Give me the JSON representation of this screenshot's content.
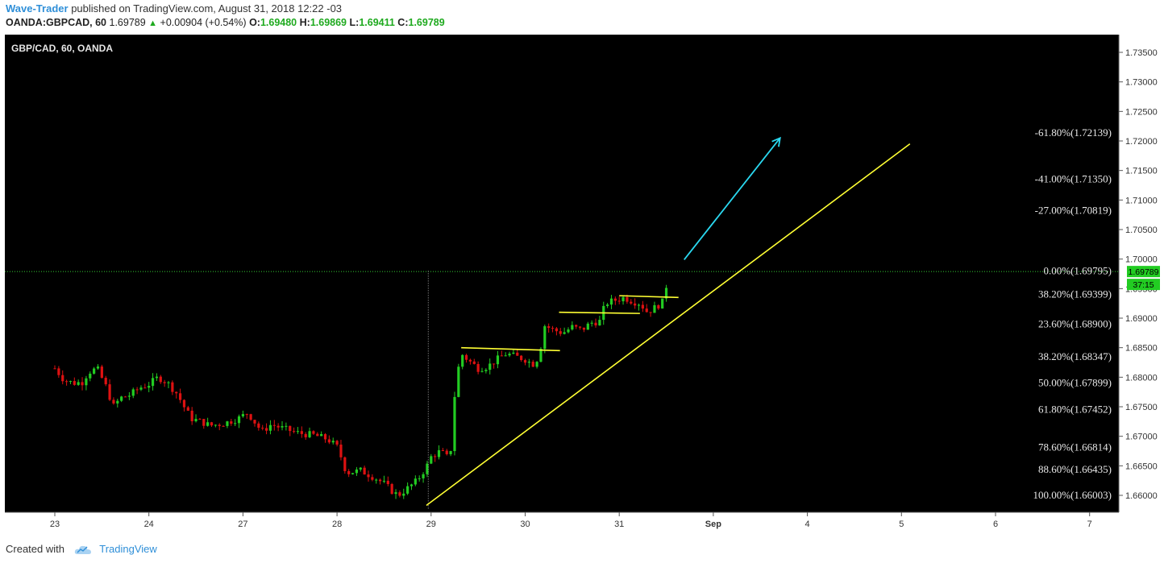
{
  "header": {
    "author": "Wave-Trader",
    "published_text": "published on TradingView.com, August 31, 2018 12:22 -03",
    "symbol": "OANDA:GBPCAD, 60",
    "last": "1.69789",
    "change": "+0.00904 (+0.54%)",
    "o_label": "O:",
    "o_value": "1.69480",
    "h_label": "H:",
    "h_value": "1.69869",
    "l_label": "L:",
    "l_value": "1.69411",
    "c_label": "C:",
    "c_value": "1.69789"
  },
  "footer": {
    "created_with": "Created with",
    "brand": "TradingView"
  },
  "colors": {
    "background": "#000000",
    "up": "#22cc22",
    "down": "#dd1111",
    "trendline": "#ffff33",
    "arrow": "#2ad8f0",
    "price_line": "#33cc33"
  },
  "chart_data": {
    "type": "candlestick",
    "title": "GBP/CAD, 60, OANDA",
    "ylim": [
      1.657,
      1.738
    ],
    "y_ticks": [
      "1.73500",
      "1.73000",
      "1.72500",
      "1.72000",
      "1.71500",
      "1.71000",
      "1.70500",
      "1.70000",
      "1.69500",
      "1.69000",
      "1.68500",
      "1.68000",
      "1.67500",
      "1.67000",
      "1.66500",
      "1.66000"
    ],
    "x_ticks": [
      {
        "label": "23",
        "day": 0
      },
      {
        "label": "24",
        "day": 1
      },
      {
        "label": "27",
        "day": 2
      },
      {
        "label": "28",
        "day": 3
      },
      {
        "label": "29",
        "day": 4
      },
      {
        "label": "30",
        "day": 5
      },
      {
        "label": "31",
        "day": 6
      },
      {
        "label": "Sep",
        "day": 7
      },
      {
        "label": "4",
        "day": 8
      },
      {
        "label": "5",
        "day": 9
      },
      {
        "label": "6",
        "day": 10
      },
      {
        "label": "7",
        "day": 11
      }
    ],
    "current_price": "1.69789",
    "countdown": "37:15",
    "fib_levels": [
      {
        "label": "-61.80%(1.72139)",
        "value": 1.72139
      },
      {
        "label": "-41.00%(1.71350)",
        "value": 1.7135
      },
      {
        "label": "-27.00%(1.70819)",
        "value": 1.70819
      },
      {
        "label": "0.00%(1.69795)",
        "value": 1.69795
      },
      {
        "label": "38.20%(1.69399)",
        "value": 1.69399
      },
      {
        "label": "23.60%(1.68900)",
        "value": 1.689
      },
      {
        "label": "38.20%(1.68347)",
        "value": 1.68347
      },
      {
        "label": "50.00%(1.67899)",
        "value": 1.67899
      },
      {
        "label": "61.80%(1.67452)",
        "value": 1.67452
      },
      {
        "label": "78.60%(1.66814)",
        "value": 1.66814
      },
      {
        "label": "88.60%(1.66435)",
        "value": 1.66435
      },
      {
        "label": "100.00%(1.66003)",
        "value": 1.66003
      }
    ],
    "candles_close_path": [
      [
        0.0,
        1.6815
      ],
      [
        0.1,
        1.6795
      ],
      [
        0.2,
        1.679
      ],
      [
        0.3,
        1.6792
      ],
      [
        0.35,
        1.6808
      ],
      [
        0.45,
        1.6815
      ],
      [
        0.55,
        1.6782
      ],
      [
        0.62,
        1.675
      ],
      [
        0.7,
        1.6765
      ],
      [
        0.8,
        1.677
      ],
      [
        0.9,
        1.6782
      ],
      [
        1.0,
        1.6788
      ],
      [
        1.1,
        1.68
      ],
      [
        1.2,
        1.679
      ],
      [
        1.3,
        1.6772
      ],
      [
        1.38,
        1.6748
      ],
      [
        1.45,
        1.673
      ],
      [
        1.55,
        1.6725
      ],
      [
        1.65,
        1.6718
      ],
      [
        1.8,
        1.6722
      ],
      [
        1.95,
        1.673
      ],
      [
        2.05,
        1.674
      ],
      [
        2.2,
        1.6708
      ],
      [
        2.3,
        1.672
      ],
      [
        2.45,
        1.6712
      ],
      [
        2.6,
        1.6705
      ],
      [
        2.75,
        1.6702
      ],
      [
        2.9,
        1.6695
      ],
      [
        3.0,
        1.6682
      ],
      [
        3.05,
        1.6662
      ],
      [
        3.1,
        1.6638
      ],
      [
        3.25,
        1.6642
      ],
      [
        3.4,
        1.663
      ],
      [
        3.5,
        1.662
      ],
      [
        3.6,
        1.6605
      ],
      [
        3.65,
        1.66
      ],
      [
        3.75,
        1.6612
      ],
      [
        3.85,
        1.6625
      ],
      [
        3.95,
        1.6648
      ],
      [
        4.0,
        1.6665
      ],
      [
        4.1,
        1.6675
      ],
      [
        4.2,
        1.666
      ],
      [
        4.26,
        1.679
      ],
      [
        4.32,
        1.684
      ],
      [
        4.4,
        1.6828
      ],
      [
        4.5,
        1.6815
      ],
      [
        4.6,
        1.6818
      ],
      [
        4.7,
        1.683
      ],
      [
        4.8,
        1.684
      ],
      [
        4.9,
        1.6835
      ],
      [
        5.0,
        1.683
      ],
      [
        5.08,
        1.6822
      ],
      [
        5.15,
        1.6835
      ],
      [
        5.2,
        1.6888
      ],
      [
        5.3,
        1.688
      ],
      [
        5.4,
        1.6875
      ],
      [
        5.5,
        1.6885
      ],
      [
        5.6,
        1.688
      ],
      [
        5.7,
        1.6892
      ],
      [
        5.8,
        1.6895
      ],
      [
        5.85,
        1.6925
      ],
      [
        5.95,
        1.693
      ],
      [
        6.05,
        1.6935
      ],
      [
        6.15,
        1.6928
      ],
      [
        6.22,
        1.6925
      ],
      [
        6.3,
        1.691
      ],
      [
        6.4,
        1.692
      ],
      [
        6.48,
        1.693
      ],
      [
        6.52,
        1.6979
      ]
    ]
  }
}
